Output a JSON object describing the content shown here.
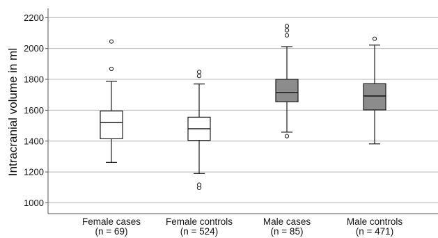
{
  "chart_data": {
    "type": "boxplot",
    "title": "",
    "xlabel": "",
    "ylabel": "Intracranial volume in ml",
    "ylim": [
      930,
      2260
    ],
    "yticks": [
      1000,
      1200,
      1400,
      1600,
      1800,
      2000,
      2200
    ],
    "grid": "horizontal",
    "colors": {
      "female_box": "#ffffff",
      "male_box": "#8c8c8c",
      "grid": "#b4b4b4",
      "axis": "#555555",
      "stroke": "#1a1a1a"
    },
    "categories": [
      {
        "label": "Female cases",
        "n_label": "(n = 69)",
        "fill": "female_box",
        "whisker_low": 1262,
        "q1": 1415,
        "median": 1520,
        "q3": 1595,
        "whisker_high": 1787,
        "outliers": [
          1868,
          2045
        ]
      },
      {
        "label": "Female controls",
        "n_label": "(n = 524)",
        "fill": "female_box",
        "whisker_low": 1190,
        "q1": 1405,
        "median": 1480,
        "q3": 1555,
        "whisker_high": 1770,
        "outliers": [
          1097,
          1117,
          1822,
          1848
        ]
      },
      {
        "label": "Male cases",
        "n_label": "(n = 85)",
        "fill": "male_box",
        "whisker_low": 1458,
        "q1": 1655,
        "median": 1715,
        "q3": 1800,
        "whisker_high": 2012,
        "outliers": [
          1432,
          2085,
          2118,
          2145
        ]
      },
      {
        "label": "Male controls",
        "n_label": "(n = 471)",
        "fill": "male_box",
        "whisker_low": 1382,
        "q1": 1602,
        "median": 1692,
        "q3": 1772,
        "whisker_high": 2022,
        "outliers": [
          2063
        ]
      }
    ]
  }
}
